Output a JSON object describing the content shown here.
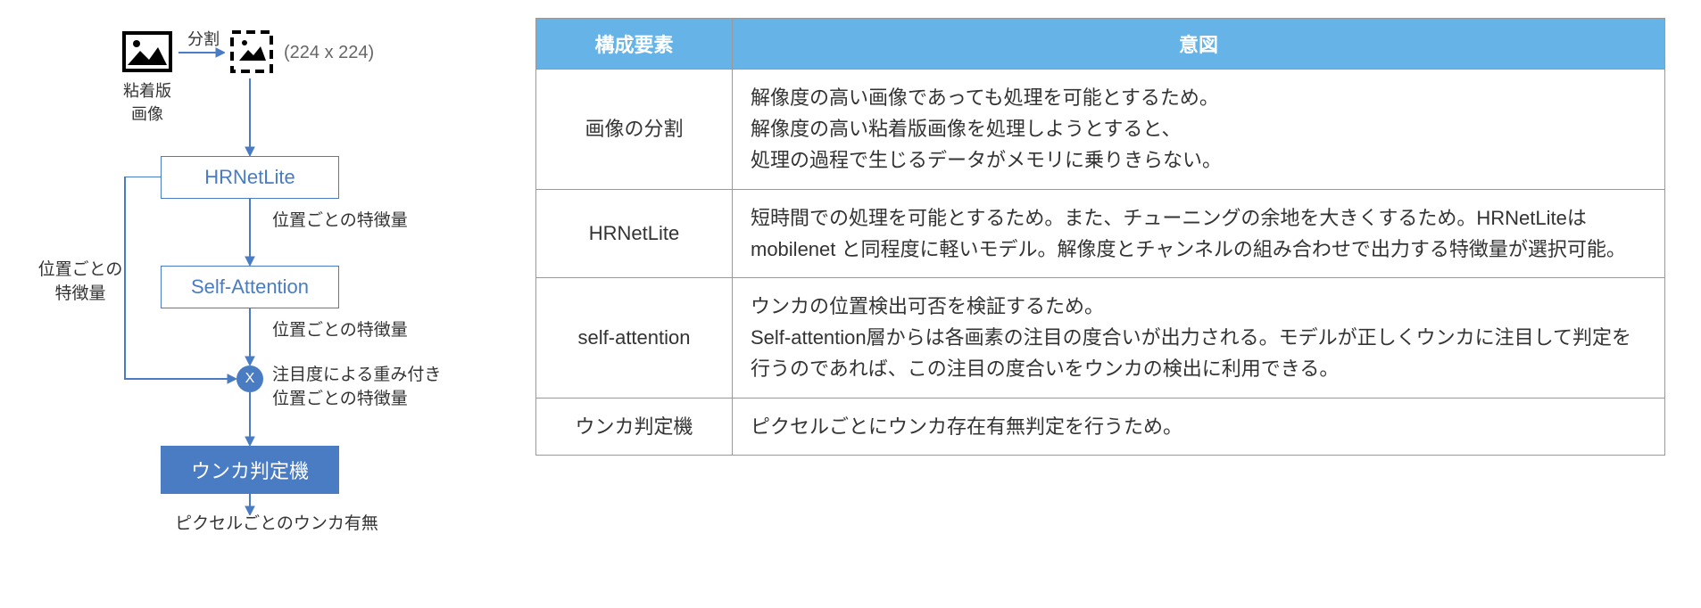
{
  "flowchart": {
    "input_image_label": "粘着版画像",
    "split_label": "分割",
    "crop_dim": "(224 x 224)",
    "box_hrnet": "HRNetLite",
    "box_attention": "Self-Attention",
    "box_classifier": "ウンカ判定機",
    "multiply_symbol": "X",
    "annot_feature1": "位置ごとの特徴量",
    "annot_feature2": "位置ごとの特徴量",
    "annot_weighted_line1": "注目度による重み付き",
    "annot_weighted_line2": "位置ごとの特徴量",
    "annot_output": "ピクセルごとのウンカ有無",
    "annot_feedback_line1": "位置ごとの",
    "annot_feedback_line2": "特徴量",
    "colors": {
      "box_border": "#4a7cc4",
      "box_text": "#4a7cc4",
      "box_filled_bg": "#4a7cc4",
      "box_filled_text": "#ffffff",
      "arrow": "#4a7cc4",
      "text": "#333333",
      "dim_text": "#666666"
    }
  },
  "table": {
    "header_bg": "#66b3e8",
    "header_text_color": "#ffffff",
    "border_color": "#999999",
    "cell_text_color": "#333333",
    "columns": [
      "構成要素",
      "意図"
    ],
    "rows": [
      {
        "component": "画像の分割",
        "intent": "解像度の高い画像であっても処理を可能とするため。\n解像度の高い粘着版画像を処理しようとすると、\n処理の過程で生じるデータがメモリに乗りきらない。"
      },
      {
        "component": "HRNetLite",
        "intent": "短時間での処理を可能とするため。また、チューニングの余地を大きくするため。HRNetLiteはmobilenet と同程度に軽いモデル。解像度とチャンネルの組み合わせで出力する特徴量が選択可能。"
      },
      {
        "component": "self-attention",
        "intent": "ウンカの位置検出可否を検証するため。\nSelf-attention層からは各画素の注目の度合いが出力される。モデルが正しくウンカに注目して判定を行うのであれば、この注目の度合いをウンカの検出に利用できる。"
      },
      {
        "component": "ウンカ判定機",
        "intent": "ピクセルごとにウンカ存在有無判定を行うため。"
      }
    ]
  }
}
